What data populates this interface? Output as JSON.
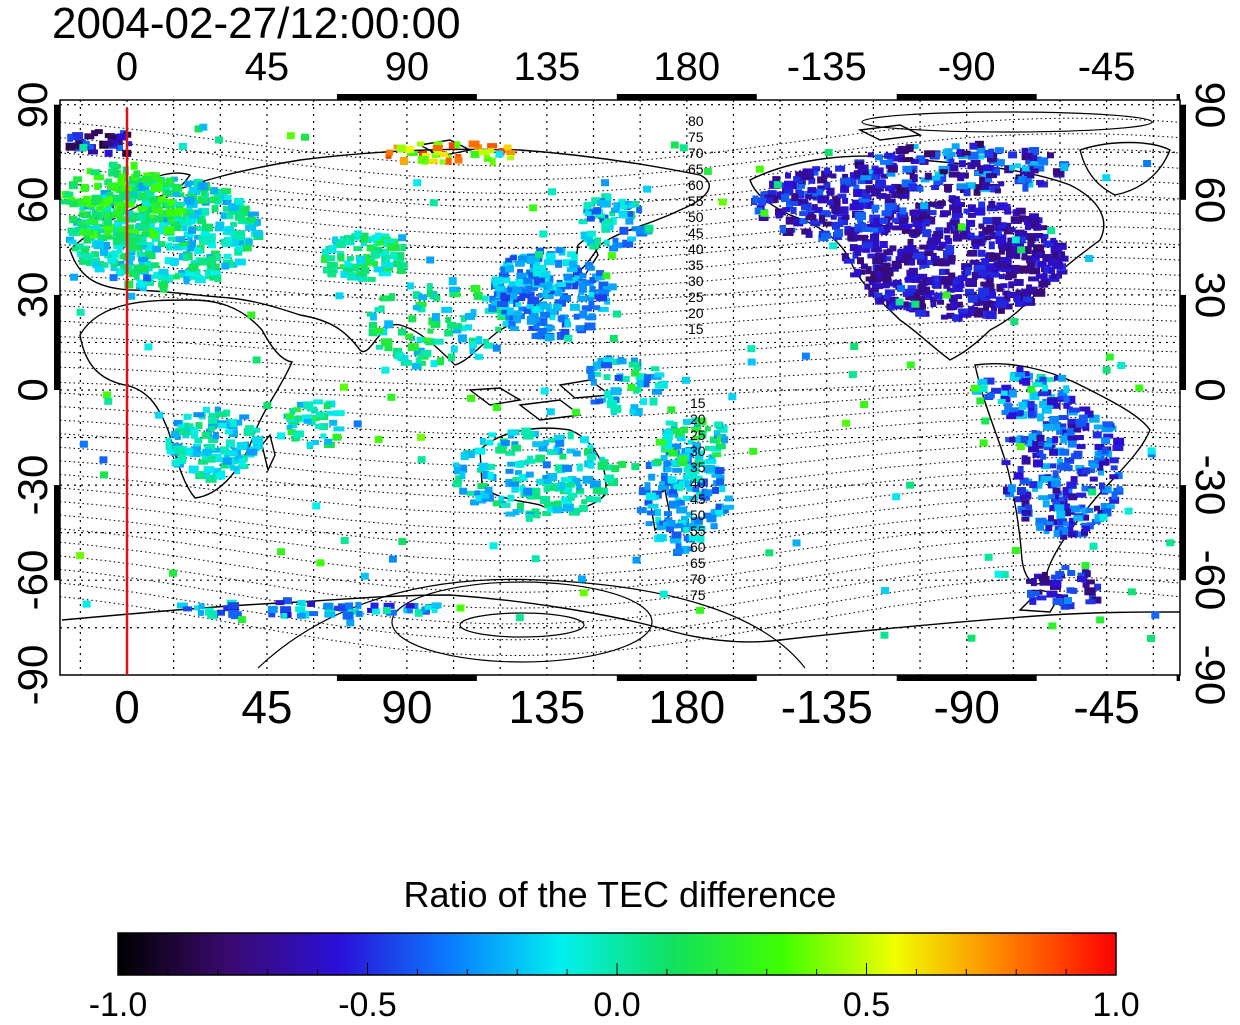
{
  "title": "2004-02-27/12:00:00",
  "map": {
    "lon_ticks_top": [
      "0",
      "45",
      "90",
      "135",
      "180",
      "-135",
      "-90",
      "-45"
    ],
    "lon_ticks_bottom": [
      "0",
      "45",
      "90",
      "135",
      "180",
      "-135",
      "-90",
      "-45"
    ],
    "lat_ticks_left": [
      "90",
      "60",
      "30",
      "0",
      "-30",
      "-60",
      "-90"
    ],
    "lat_ticks_right": [
      "90",
      "60",
      "30",
      "0",
      "-30",
      "-60",
      "-90"
    ],
    "dip_latitude_labels_north": [
      "80",
      "75",
      "70",
      "65",
      "60",
      "55",
      "50",
      "45",
      "40",
      "35",
      "30",
      "25",
      "20",
      "15"
    ],
    "dip_latitude_labels_south": [
      "15",
      "20",
      "25",
      "30",
      "35",
      "40",
      "45",
      "50",
      "55",
      "60",
      "65",
      "70",
      "75"
    ],
    "marker_longitude": 0,
    "marker_color": "#dd1111"
  },
  "colorbar": {
    "title": "Ratio of the TEC difference",
    "labels": [
      "-1.0",
      "-0.5",
      "0.0",
      "0.5",
      "1.0"
    ],
    "min": -1.0,
    "max": 1.0,
    "colors": [
      "#000000",
      "#3a0a6e",
      "#2a10d8",
      "#0a7cff",
      "#00f0f0",
      "#10e060",
      "#40ff00",
      "#f0ff00",
      "#ff8000",
      "#ff0000"
    ]
  }
}
